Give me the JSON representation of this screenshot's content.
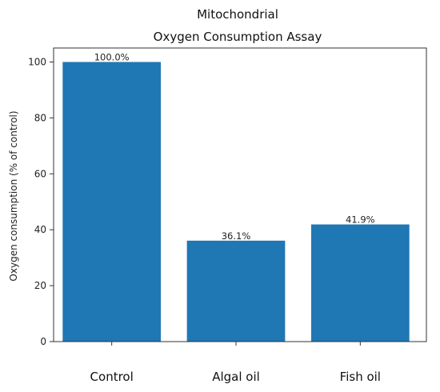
{
  "chart_data": {
    "type": "bar",
    "title_lines": [
      "Mitochondrial",
      "Oxygen Consumption Assay"
    ],
    "categories": [
      "Control",
      "Algal oil",
      "Fish oil"
    ],
    "values": [
      100.0,
      36.1,
      41.9
    ],
    "data_labels": [
      "100.0%",
      "36.1%",
      "41.9%"
    ],
    "xlabel": "",
    "ylabel": "Oxygen consumption (% of control)",
    "ylim": [
      0,
      105
    ],
    "yticks": [
      0,
      20,
      40,
      60,
      80,
      100
    ],
    "bar_color": "#1f77b4",
    "grid": false,
    "legend": "none"
  }
}
